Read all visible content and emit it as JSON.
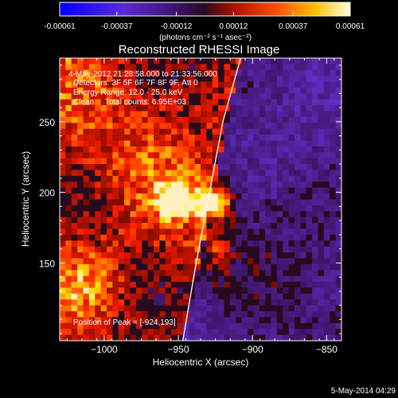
{
  "colorbar": {
    "tick_labels": [
      "-0.00061",
      "-0.00037",
      "-0.00012",
      "0.00012",
      "0.00037",
      "0.00061"
    ],
    "tick_values": [
      -0.00061,
      -0.00037,
      -0.00012,
      0.00012,
      0.00037,
      0.00061
    ],
    "range": [
      -0.00061,
      0.00061
    ],
    "units_label": "(photons cm⁻² s⁻¹ asec⁻²)"
  },
  "plot": {
    "title": "Reconstructed RHESSI Image",
    "xlabel": "Heliocentric X (arcsec)",
    "ylabel": "Heliocentric Y (arcsec)",
    "xlim": [
      -1030,
      -840
    ],
    "ylim": [
      95,
      295
    ],
    "x_ticks": [
      -1000,
      -950,
      -900,
      -850
    ],
    "x_tick_labels": [
      "−1000",
      "−950",
      "−900",
      "−850"
    ],
    "y_ticks": [
      150,
      200,
      250
    ],
    "y_tick_labels": [
      "150",
      "200",
      "250"
    ],
    "info_lines": [
      "4-May-2012 21:28:58.000 to 21:33:56.000",
      "Detectors: 3F 5F 6F 7F 8F 9F, Att 0",
      "Energy Range: 12.0 - 25.0 keV",
      "Clean     Total counts: 6.95E+03"
    ],
    "peak_label": "Position of Peak = [-924,193]",
    "peak_position": [
      -924,
      193
    ],
    "solar_limb": [
      [
        -947,
        95
      ],
      [
        -938,
        150
      ],
      [
        -929,
        200
      ],
      [
        -920,
        250
      ],
      [
        -908,
        295
      ]
    ]
  },
  "footer": {
    "timestamp": "5-May-2014 04:29"
  },
  "colors": {
    "background": "#000000",
    "foreground": "#ffffff",
    "colorbar_negative": "#0000ff",
    "colorbar_neutral": "#2a0a4a",
    "colorbar_peak": "#ffffff"
  }
}
